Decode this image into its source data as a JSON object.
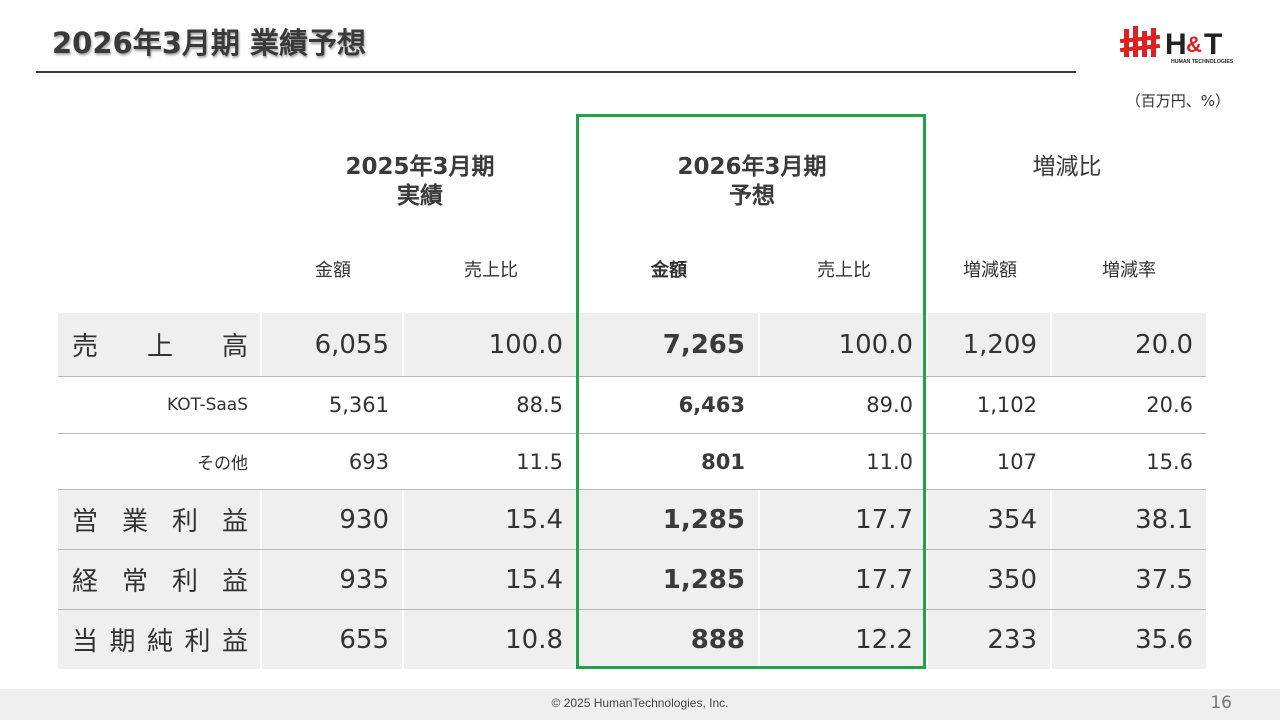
{
  "page": {
    "title": "2026年3月期 業績予想",
    "unit": "（百万円、%）",
    "copyright": "© 2025  HumanTechnologies, Inc.",
    "page_number": "16"
  },
  "logo": {
    "main": "H&T",
    "sub": "HUMAN TECHNOLOGIES",
    "colors": {
      "red": "#e02020",
      "dark": "#222222"
    }
  },
  "header": {
    "col_2025": {
      "line1": "2025年3月期",
      "line2": "実績"
    },
    "col_2026": {
      "line1": "2026年3月期",
      "line2": "予想"
    },
    "col_change": "増減比",
    "sub": {
      "amount_2025": "金額",
      "ratio_2025": "売上比",
      "amount_2026": "金額",
      "ratio_2026": "売上比",
      "change_amount": "増減額",
      "change_rate": "増減率"
    }
  },
  "highlight_color": "#22a24a",
  "rows": [
    {
      "label_chars": [
        "売",
        "上",
        "高"
      ],
      "v2025": "6,055",
      "r2025": "100.0",
      "v2026": "7,265",
      "r2026": "100.0",
      "diff": "1,209",
      "rate": "20.0"
    },
    {
      "label": "KOT-SaaS",
      "v2025": "5,361",
      "r2025": "88.5",
      "v2026": "6,463",
      "r2026": "89.0",
      "diff": "1,102",
      "rate": "20.6"
    },
    {
      "label": "その他",
      "v2025": "693",
      "r2025": "11.5",
      "v2026": "801",
      "r2026": "11.0",
      "diff": "107",
      "rate": "15.6"
    },
    {
      "label_chars": [
        "営",
        "業",
        "利",
        "益"
      ],
      "v2025": "930",
      "r2025": "15.4",
      "v2026": "1,285",
      "r2026": "17.7",
      "diff": "354",
      "rate": "38.1"
    },
    {
      "label_chars": [
        "経",
        "常",
        "利",
        "益"
      ],
      "v2025": "935",
      "r2025": "15.4",
      "v2026": "1,285",
      "r2026": "17.7",
      "diff": "350",
      "rate": "37.5"
    },
    {
      "label_chars": [
        "当",
        "期",
        "純",
        "利",
        "益"
      ],
      "v2025": "655",
      "r2025": "10.8",
      "v2026": "888",
      "r2026": "12.2",
      "diff": "233",
      "rate": "35.6"
    }
  ]
}
